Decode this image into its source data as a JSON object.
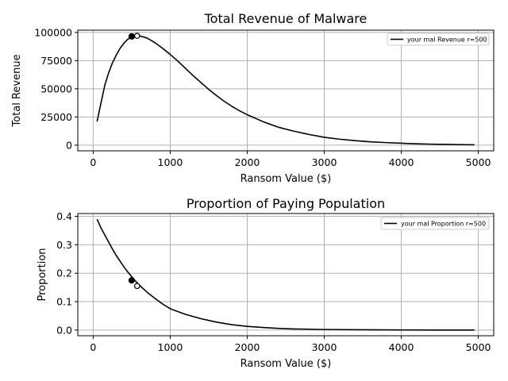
{
  "chart_data": [
    {
      "type": "line",
      "title": "Total Revenue of Malware",
      "xlabel": "Ransom Value ($)",
      "ylabel": "Total Revenue",
      "xlim": [
        -200,
        5200
      ],
      "ylim": [
        -5000,
        102000
      ],
      "xticks": [
        0,
        1000,
        2000,
        3000,
        4000,
        5000
      ],
      "xtick_labels": [
        "0",
        "1000",
        "2000",
        "3000",
        "4000",
        "5000"
      ],
      "yticks": [
        0,
        25000,
        50000,
        75000,
        100000
      ],
      "ytick_labels": [
        "0",
        "25000",
        "50000",
        "75000",
        "100000"
      ],
      "grid": true,
      "legend_position": "top-right",
      "series": [
        {
          "name": "your mal Revenue r=500",
          "color": "#000000",
          "x": [
            50,
            100,
            150,
            200,
            250,
            300,
            350,
            400,
            450,
            500,
            550,
            600,
            700,
            800,
            900,
            1000,
            1100,
            1200,
            1300,
            1400,
            1500,
            1600,
            1700,
            1800,
            1900,
            2000,
            2200,
            2400,
            2600,
            2800,
            3000,
            3200,
            3400,
            3600,
            3800,
            4000,
            4200,
            4400,
            4600,
            4800,
            4950
          ],
          "y": [
            21000,
            37000,
            53000,
            64000,
            73000,
            80000,
            86000,
            90500,
            94000,
            96000,
            97000,
            97000,
            95000,
            91000,
            86000,
            80500,
            74500,
            68000,
            61500,
            55500,
            49500,
            44000,
            39000,
            34500,
            30500,
            27000,
            21000,
            16000,
            12500,
            9500,
            7000,
            5300,
            4000,
            3000,
            2300,
            1700,
            1200,
            900,
            650,
            450,
            300
          ]
        }
      ],
      "markers": [
        {
          "x": 500,
          "y": 96500,
          "style": "filled"
        },
        {
          "x": 570,
          "y": 97000,
          "style": "open"
        }
      ]
    },
    {
      "type": "line",
      "title": "Proportion of Paying Population",
      "xlabel": "Ransom Value ($)",
      "ylabel": "Proportion",
      "xlim": [
        -200,
        5200
      ],
      "ylim": [
        -0.02,
        0.41
      ],
      "xticks": [
        0,
        1000,
        2000,
        3000,
        4000,
        5000
      ],
      "xtick_labels": [
        "0",
        "1000",
        "2000",
        "3000",
        "4000",
        "5000"
      ],
      "yticks": [
        0.0,
        0.1,
        0.2,
        0.3,
        0.4
      ],
      "ytick_labels": [
        "0.0",
        "0.1",
        "0.2",
        "0.3",
        "0.4"
      ],
      "grid": true,
      "legend_position": "top-right",
      "series": [
        {
          "name": "your mal Proportion r=500",
          "color": "#000000",
          "x": [
            50,
            100,
            150,
            200,
            250,
            300,
            350,
            400,
            450,
            500,
            550,
            600,
            700,
            800,
            900,
            1000,
            1200,
            1400,
            1600,
            1800,
            2000,
            2200,
            2400,
            2600,
            2800,
            3000,
            3500,
            4000,
            4500,
            4950
          ],
          "y": [
            0.39,
            0.36,
            0.335,
            0.31,
            0.285,
            0.262,
            0.242,
            0.222,
            0.204,
            0.188,
            0.172,
            0.158,
            0.133,
            0.112,
            0.092,
            0.075,
            0.055,
            0.04,
            0.028,
            0.019,
            0.013,
            0.009,
            0.006,
            0.004,
            0.003,
            0.002,
            0.001,
            0.0005,
            0.0002,
            0.0001
          ]
        }
      ],
      "markers": [
        {
          "x": 500,
          "y": 0.175,
          "style": "filled"
        },
        {
          "x": 570,
          "y": 0.155,
          "style": "open"
        }
      ]
    }
  ]
}
